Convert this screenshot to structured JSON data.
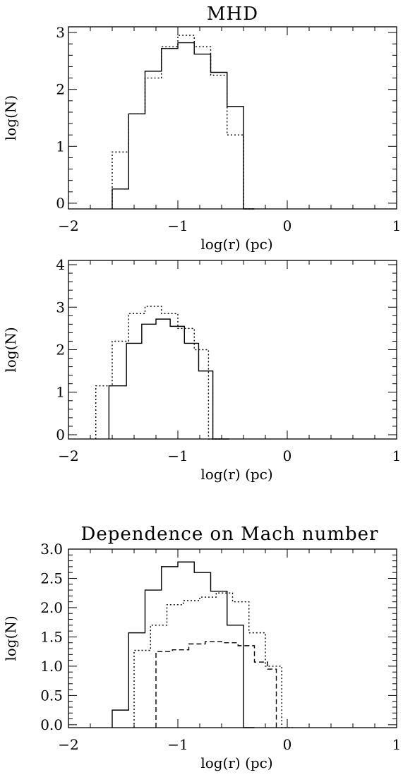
{
  "chart_data": [
    {
      "type": "step",
      "title": "MHD",
      "xlabel": "log(r) (pc)",
      "ylabel": "log(N)",
      "xlim": [
        -2,
        1
      ],
      "ylim": [
        -0.1,
        3.1
      ],
      "xticks": [
        "−2",
        "−1",
        "0",
        "1"
      ],
      "yticks": [
        "0",
        "1",
        "2",
        "3"
      ],
      "grid": false,
      "series": [
        {
          "style": "solid",
          "edges": [
            -1.6,
            -1.45,
            -1.3,
            -1.15,
            -1.0,
            -0.85,
            -0.7,
            -0.55,
            -0.4,
            -0.3
          ],
          "values": [
            0.25,
            1.57,
            2.32,
            2.72,
            2.82,
            2.62,
            2.3,
            1.7,
            -0.1
          ]
        },
        {
          "style": "dotted",
          "edges": [
            -1.6,
            -1.45,
            -1.3,
            -1.15,
            -1.0,
            -0.85,
            -0.7,
            -0.55,
            -0.4,
            -0.3
          ],
          "values": [
            0.9,
            1.57,
            2.2,
            2.75,
            2.95,
            2.75,
            2.25,
            1.2,
            -0.1
          ]
        }
      ]
    },
    {
      "type": "step",
      "title": "",
      "xlabel": "log(r) (pc)",
      "ylabel": "log(N)",
      "xlim": [
        -2,
        1
      ],
      "ylim": [
        -0.1,
        4.1
      ],
      "xticks": [
        "−2",
        "−1",
        "0",
        "1"
      ],
      "yticks": [
        "0",
        "1",
        "2",
        "3",
        "4"
      ],
      "grid": false,
      "series": [
        {
          "style": "solid",
          "edges": [
            -1.63,
            -1.47,
            -1.33,
            -1.2,
            -1.07,
            -0.94,
            -0.81,
            -0.68,
            -0.53
          ],
          "values": [
            1.15,
            2.15,
            2.6,
            2.72,
            2.55,
            2.15,
            1.5,
            -0.1
          ]
        },
        {
          "style": "dotted",
          "edges": [
            -1.75,
            -1.6,
            -1.45,
            -1.3,
            -1.15,
            -1.0,
            -0.85,
            -0.72,
            -0.61
          ],
          "values": [
            1.15,
            2.2,
            2.85,
            3.02,
            2.85,
            2.5,
            2.0,
            -0.1
          ]
        }
      ]
    },
    {
      "type": "step",
      "title": "Dependence on Mach number",
      "xlabel": "log(r) (pc)",
      "ylabel": "log(N)",
      "xlim": [
        -2,
        1
      ],
      "ylim": [
        -0.05,
        3.0
      ],
      "xticks": [
        "−2",
        "−1",
        "0",
        "1"
      ],
      "yticks": [
        "0.0",
        "0.5",
        "1.0",
        "1.5",
        "2.0",
        "2.5",
        "3.0"
      ],
      "grid": false,
      "series": [
        {
          "style": "solid",
          "edges": [
            -1.6,
            -1.45,
            -1.3,
            -1.15,
            -1.0,
            -0.85,
            -0.7,
            -0.55,
            -0.4,
            -0.3
          ],
          "values": [
            0.25,
            1.57,
            2.3,
            2.7,
            2.78,
            2.6,
            2.28,
            1.7,
            -0.05
          ]
        },
        {
          "style": "dotted",
          "edges": [
            -1.4,
            -1.25,
            -1.1,
            -0.95,
            -0.8,
            -0.65,
            -0.5,
            -0.35,
            -0.2,
            -0.05,
            0.05
          ],
          "values": [
            1.27,
            1.7,
            2.05,
            2.12,
            2.18,
            2.25,
            2.1,
            1.57,
            1.0,
            -0.05
          ]
        },
        {
          "style": "dashed",
          "edges": [
            -1.2,
            -1.05,
            -0.9,
            -0.75,
            -0.6,
            -0.45,
            -0.3,
            -0.18,
            -0.1
          ],
          "values": [
            1.25,
            1.28,
            1.38,
            1.42,
            1.4,
            1.35,
            1.07,
            0.95,
            -0.05
          ]
        }
      ]
    }
  ]
}
